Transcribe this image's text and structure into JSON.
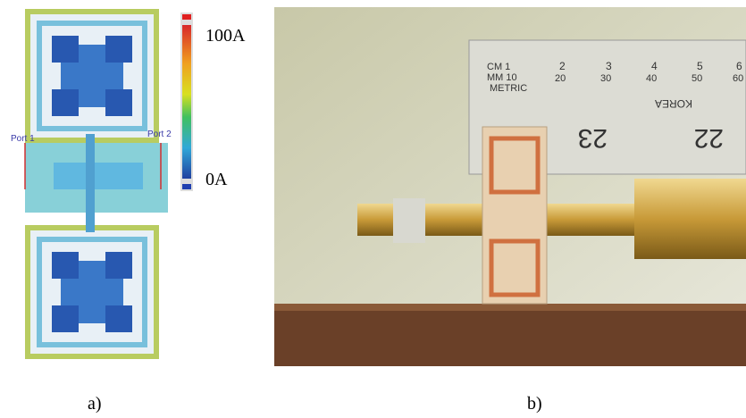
{
  "panel_a": {
    "colorbar": {
      "max_label": "100A",
      "min_label": "0A"
    },
    "ports": [
      "Port 1",
      "Port 2"
    ],
    "caption": "a)"
  },
  "panel_b": {
    "ruler": {
      "unit_labels": [
        "CM 1",
        "MM 10",
        "METRIC"
      ],
      "cm_labels": [
        "2",
        "3",
        "4",
        "5",
        "6"
      ],
      "mm_labels": [
        "20",
        "30",
        "40",
        "50",
        "60"
      ],
      "lower_labels": [
        "23",
        "22"
      ],
      "brand": "KOREA"
    },
    "caption": "b)"
  }
}
